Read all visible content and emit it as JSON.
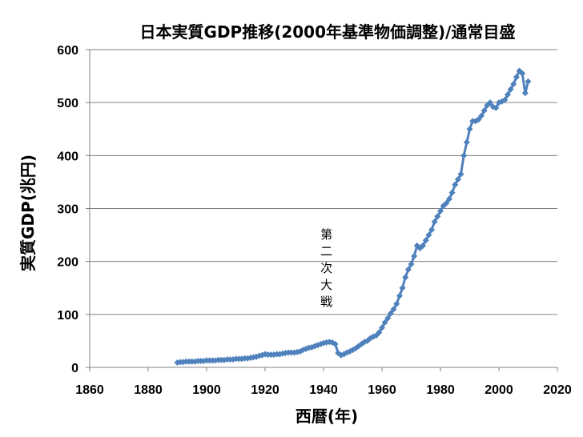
{
  "chart_data": {
    "type": "line",
    "title": "日本実質GDP推移(2000年基準物価調整)/通常目盛",
    "xlabel": "西暦(年)",
    "ylabel": "実質GDP(兆円)",
    "xlim": [
      1860,
      2020
    ],
    "ylim": [
      0,
      600
    ],
    "x_ticks": [
      "1860",
      "1880",
      "1900",
      "1920",
      "1940",
      "1960",
      "1980",
      "2000",
      "2020"
    ],
    "y_ticks": [
      "0",
      "100",
      "200",
      "300",
      "400",
      "500",
      "600"
    ],
    "grid": "horizontal",
    "legend": "none",
    "color": "#4f81bd",
    "marker": "diamond",
    "annotations": [
      {
        "text": "第二次大戦",
        "x": 1941,
        "y": 110,
        "orientation": "vertical"
      }
    ],
    "series": [
      {
        "x": [
          1890,
          1891,
          1892,
          1893,
          1894,
          1895,
          1896,
          1897,
          1898,
          1899,
          1900,
          1901,
          1902,
          1903,
          1904,
          1905,
          1906,
          1907,
          1908,
          1909,
          1910,
          1911,
          1912,
          1913,
          1914,
          1915,
          1916,
          1917,
          1918,
          1919,
          1920,
          1921,
          1922,
          1923,
          1924,
          1925,
          1926,
          1927,
          1928,
          1929,
          1930,
          1931,
          1932,
          1933,
          1934,
          1935,
          1936,
          1937,
          1938,
          1939,
          1940,
          1941,
          1942,
          1943,
          1944,
          1945,
          1946,
          1947,
          1948,
          1949,
          1950,
          1951,
          1952,
          1953,
          1954,
          1955,
          1956,
          1957,
          1958,
          1959,
          1960,
          1961,
          1962,
          1963,
          1964,
          1965,
          1966,
          1967,
          1968,
          1969,
          1970,
          1971,
          1972,
          1973,
          1974,
          1975,
          1976,
          1977,
          1978,
          1979,
          1980,
          1981,
          1982,
          1983,
          1984,
          1985,
          1986,
          1987,
          1988,
          1989,
          1990,
          1991,
          1992,
          1993,
          1994,
          1995,
          1996,
          1997,
          1998,
          1999,
          2000,
          2001,
          2002,
          2003,
          2004,
          2005,
          2006,
          2007,
          2008,
          2009,
          2010
        ],
        "y": [
          9,
          10,
          10,
          11,
          11,
          11,
          11,
          12,
          12,
          12,
          13,
          13,
          13,
          13,
          14,
          14,
          14,
          15,
          15,
          15,
          16,
          16,
          16,
          17,
          17,
          18,
          19,
          20,
          22,
          23,
          25,
          24,
          24,
          24,
          25,
          25,
          26,
          27,
          28,
          28,
          28,
          29,
          30,
          33,
          35,
          37,
          38,
          40,
          42,
          44,
          46,
          47,
          48,
          47,
          44,
          27,
          23,
          25,
          28,
          30,
          33,
          36,
          40,
          44,
          48,
          50,
          55,
          58,
          60,
          66,
          75,
          85,
          93,
          102,
          110,
          120,
          135,
          150,
          170,
          185,
          195,
          210,
          230,
          225,
          230,
          240,
          250,
          260,
          275,
          285,
          295,
          305,
          310,
          318,
          330,
          345,
          355,
          365,
          400,
          425,
          450,
          465,
          465,
          468,
          475,
          485,
          495,
          500,
          492,
          490,
          500,
          502,
          505,
          515,
          525,
          535,
          548,
          560,
          555,
          518,
          540
        ]
      }
    ]
  }
}
